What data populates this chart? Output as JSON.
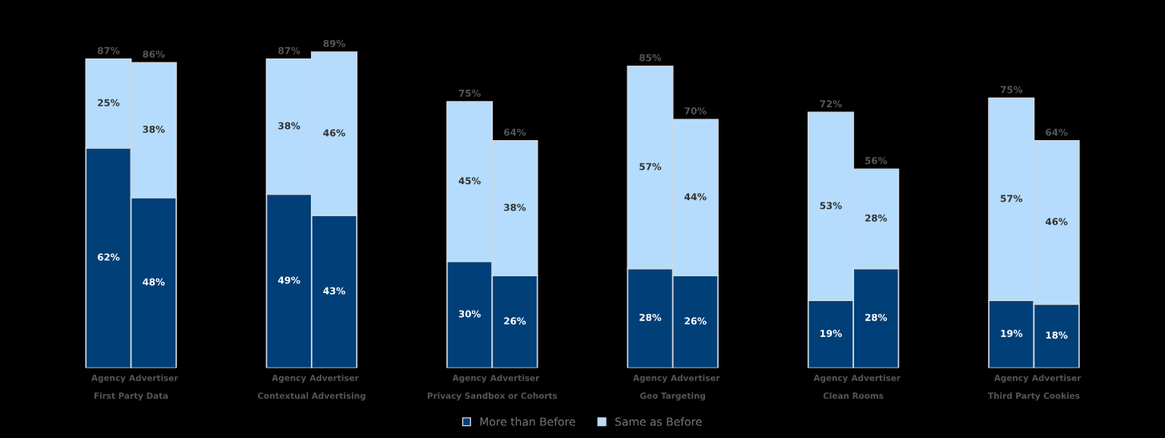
{
  "chart_data": {
    "type": "bar",
    "stacked": true,
    "legend": "bottom",
    "grid": false,
    "categories": [
      "Agency",
      "Advertiser",
      "Agency",
      "Advertiser",
      "Agency",
      "Advertiser",
      "Agency",
      "Advertiser",
      "Agency",
      "Advertiser",
      "Agency",
      "Advertiser"
    ],
    "series": [
      {
        "name": "More than Before",
        "color": "#003f78",
        "values": [
          62,
          48,
          49,
          43,
          30,
          26,
          28,
          26,
          19,
          28,
          19,
          18
        ],
        "value_labels": [
          "62%",
          "48%",
          "49%",
          "43%",
          "30%",
          "26%",
          "28%",
          "26%",
          "19%",
          "28%",
          "19%",
          "18%"
        ]
      },
      {
        "name": "Same as Before",
        "color": "#b5dcfd",
        "values": [
          25,
          38,
          38,
          46,
          45,
          38,
          57,
          44,
          53,
          28,
          57,
          46
        ],
        "value_labels": [
          "25%",
          "38%",
          "38%",
          "46%",
          "45%",
          "38%",
          "57%",
          "44%",
          "53%",
          "28%",
          "57%",
          "46%"
        ]
      }
    ],
    "totals": [
      "87%",
      "86%",
      "87%",
      "89%",
      "75%",
      "64%",
      "85%",
      "70%",
      "72%",
      "56%",
      "75%",
      "64%"
    ],
    "annotations": [
      "First Party Data",
      "Contextual Advertising",
      "Privacy Sandbox or Cohorts",
      "Geo Targeting",
      "Clean Rooms",
      "Third Party Cookies"
    ]
  }
}
